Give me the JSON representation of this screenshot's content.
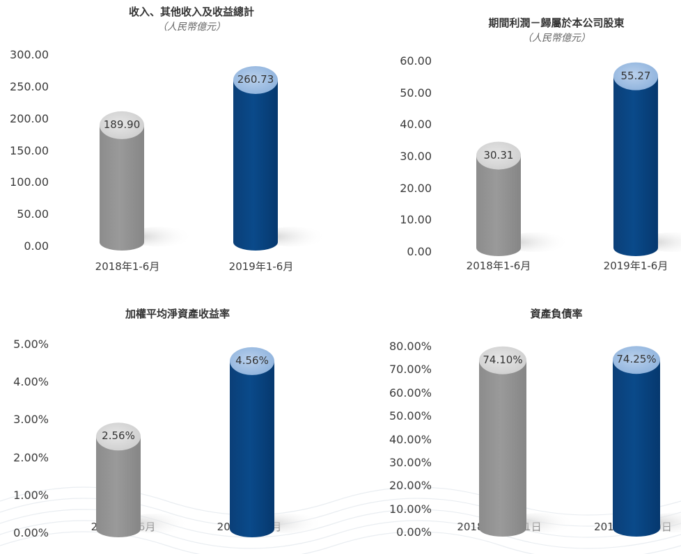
{
  "colors": {
    "grey_body": "#9a9a9a",
    "blue_body": "#0a4a8a",
    "grey_top": "#cfcfcf",
    "blue_top": "#8fb3dd",
    "shadow": "#cfcfcf"
  },
  "chart_data": [
    {
      "type": "bar",
      "title": "收入、其他收入及收益總計",
      "subtitle": "（人民幣億元）",
      "categories": [
        "2018年1-6月",
        "2019年1-6月"
      ],
      "values": [
        189.9,
        260.73
      ],
      "value_labels": [
        "189.90",
        "260.73"
      ],
      "yticks": [
        "0.00",
        "50.00",
        "100.00",
        "150.00",
        "200.00",
        "250.00",
        "300.00"
      ],
      "ylim": [
        0,
        300
      ],
      "grid": false
    },
    {
      "type": "bar",
      "title": "期間利潤－歸屬於本公司股東",
      "subtitle": "（人民幣億元）",
      "categories": [
        "2018年1-6月",
        "2019年1-6月"
      ],
      "values": [
        30.31,
        55.27
      ],
      "value_labels": [
        "30.31",
        "55.27"
      ],
      "yticks": [
        "0.00",
        "10.00",
        "20.00",
        "30.00",
        "40.00",
        "50.00",
        "60.00"
      ],
      "ylim": [
        0,
        60
      ],
      "grid": false
    },
    {
      "type": "bar",
      "title": "加權平均淨資產收益率",
      "subtitle": "",
      "categories": [
        "2018年1-6月",
        "2019年1-6月"
      ],
      "values": [
        2.56,
        4.56
      ],
      "value_labels": [
        "2.56%",
        "4.56%"
      ],
      "yticks": [
        "0.00%",
        "1.00%",
        "2.00%",
        "3.00%",
        "4.00%",
        "5.00%"
      ],
      "ylim": [
        0,
        5
      ],
      "grid": false
    },
    {
      "type": "bar",
      "title": "資產負債率",
      "subtitle": "",
      "categories": [
        "2018年12月31日",
        "2019年6月30日"
      ],
      "values": [
        74.1,
        74.25
      ],
      "value_labels": [
        "74.10%",
        "74.25%"
      ],
      "yticks": [
        "0.00%",
        "10.00%",
        "20.00%",
        "30.00%",
        "40.00%",
        "50.00%",
        "60.00%",
        "70.00%",
        "80.00%"
      ],
      "ylim": [
        0,
        80
      ],
      "grid": false
    }
  ]
}
